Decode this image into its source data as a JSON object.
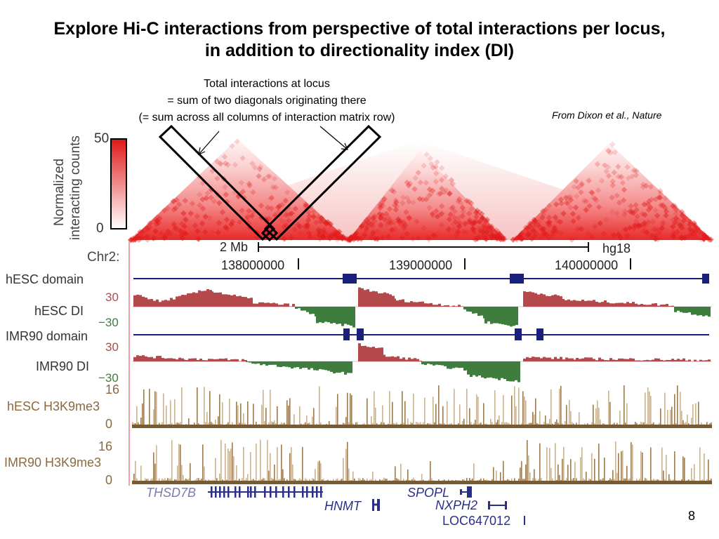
{
  "slide": {
    "title_line1": "Explore Hi-C interactions from perspective of total interactions per locus,",
    "title_line2": "in addition to directionality index (DI)",
    "annotation_line1": "Total interactions at locus",
    "annotation_line2": "= sum of two diagonals originating there",
    "annotation_line3": "(= sum across all columns of interaction matrix row)",
    "citation": "From Dixon et al., Nature",
    "page_number": "8"
  },
  "figure": {
    "colorbar": {
      "label_line1": "Normalized",
      "label_line2": "interacting counts",
      "max": "50",
      "min": "0",
      "color": "#e02020"
    },
    "ruler": {
      "chrom_label": "Chr2:",
      "scale_label": "2 Mb",
      "assembly": "hg18",
      "ticks": [
        "138000000",
        "139000000",
        "140000000"
      ]
    },
    "tracks": {
      "hesc_domain": "hESC domain",
      "hesc_di": "hESC DI",
      "imr90_domain": "IMR90 domain",
      "imr90_di": "IMR90 DI",
      "hesc_k9": "hESC H3K9me3",
      "imr90_k9": "IMR90 H3K9me3"
    },
    "di_scale": {
      "max": "30",
      "min": "−30"
    },
    "k9_scale": {
      "max": "16",
      "min": "0"
    },
    "genes": {
      "thsd7b": "THSD7B",
      "hnmt": "HNMT",
      "spopl": "SPOPL",
      "nxph2": "NXPH2",
      "loc": "LOC647012"
    },
    "colors": {
      "domain": "#1a1f7a",
      "di_positive": "#b5484a",
      "di_negative": "#3f7d3f",
      "di_extreme": "#b03ab0",
      "h3k9me3": "#9a7b52",
      "gene": "#2a2f8a",
      "thsd7b_label": "#7a7ab5"
    }
  }
}
